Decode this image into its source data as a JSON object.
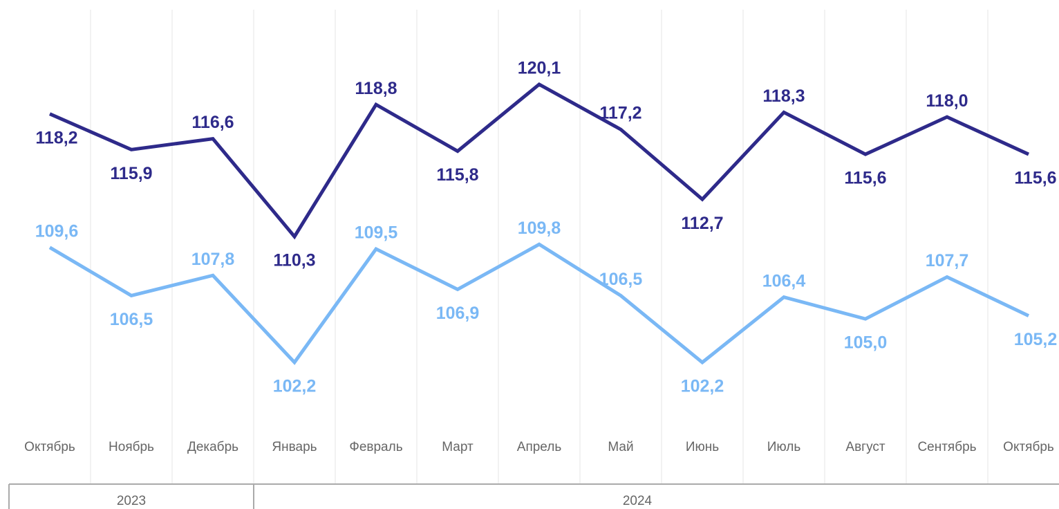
{
  "chart_data": {
    "type": "line",
    "categories": [
      "Октябрь",
      "Ноябрь",
      "Декабрь",
      "Январь",
      "Февраль",
      "Март",
      "Апрель",
      "Май",
      "Июнь",
      "Июль",
      "Август",
      "Сентябрь",
      "Октябрь"
    ],
    "x_groups": [
      "2023",
      "2024"
    ],
    "series": [
      {
        "color": "#2e2a8a",
        "values": [
          118.2,
          115.9,
          116.6,
          110.3,
          118.8,
          115.8,
          120.1,
          117.2,
          112.7,
          118.3,
          115.6,
          118.0,
          115.6
        ],
        "value_labels": [
          "118,2",
          "115,9",
          "116,6",
          "110,3",
          "118,8",
          "115,8",
          "120,1",
          "117,2",
          "112,7",
          "118,3",
          "115,6",
          "118,0",
          "115,6"
        ]
      },
      {
        "color": "#7ab8f5",
        "values": [
          109.6,
          106.5,
          107.8,
          102.2,
          109.5,
          106.9,
          109.8,
          106.5,
          102.2,
          106.4,
          105.0,
          107.7,
          105.2
        ],
        "value_labels": [
          "109,6",
          "106,5",
          "107,8",
          "102,2",
          "109,5",
          "106,9",
          "109,8",
          "106,5",
          "102,2",
          "106,4",
          "105,0",
          "107,7",
          "105,2"
        ]
      }
    ],
    "grid": true
  }
}
